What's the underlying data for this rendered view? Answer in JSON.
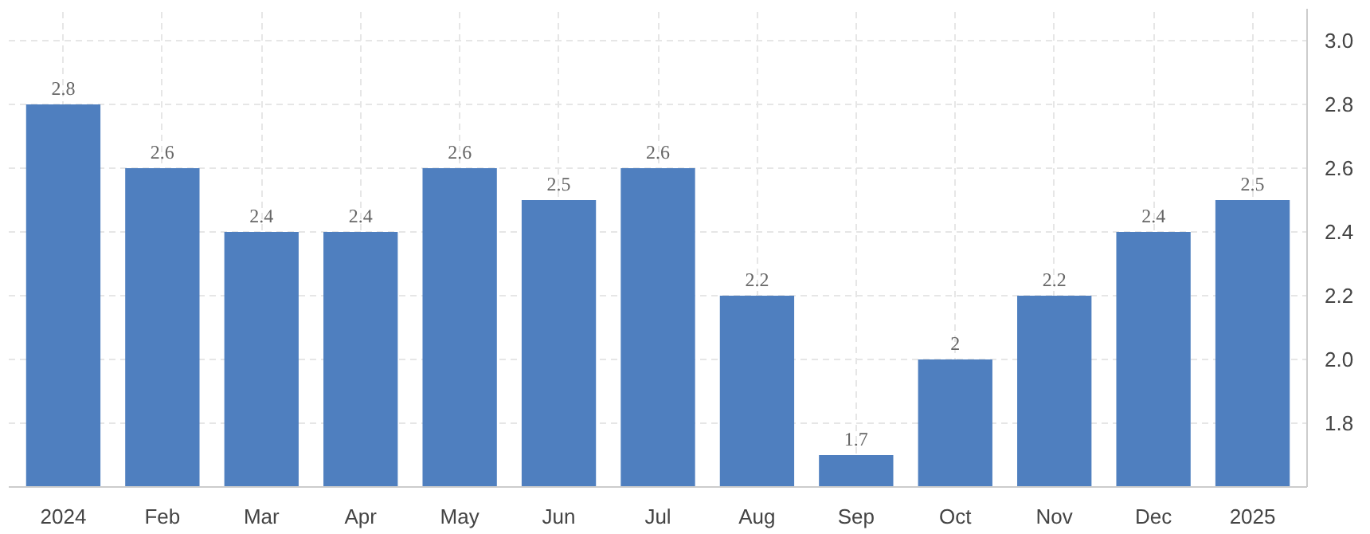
{
  "chart_data": {
    "type": "bar",
    "categories": [
      "2024",
      "Feb",
      "Mar",
      "Apr",
      "May",
      "Jun",
      "Jul",
      "Aug",
      "Sep",
      "Oct",
      "Nov",
      "Dec",
      "2025"
    ],
    "values": [
      2.8,
      2.6,
      2.4,
      2.4,
      2.6,
      2.5,
      2.6,
      2.2,
      1.7,
      2,
      2.2,
      2.4,
      2.5
    ],
    "color": "#4f7fbf",
    "ylim": [
      1.6,
      3.1
    ],
    "yticks": [
      {
        "value": 1.8,
        "label": "1.8"
      },
      {
        "value": 2.0,
        "label": "2.0"
      },
      {
        "value": 2.2,
        "label": "2.2"
      },
      {
        "value": 2.4,
        "label": "2.4"
      },
      {
        "value": 2.6,
        "label": "2.6"
      },
      {
        "value": 2.8,
        "label": "2.8"
      },
      {
        "value": 3.0,
        "label": "3.0"
      }
    ],
    "grid": true,
    "data_labels": true
  }
}
